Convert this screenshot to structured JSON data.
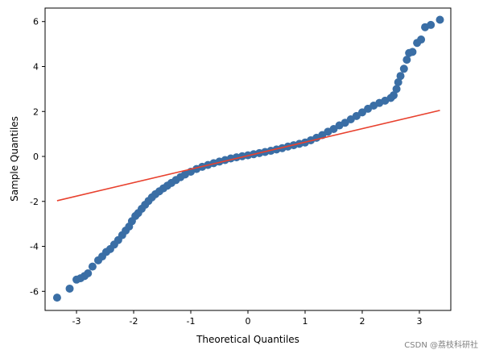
{
  "chart_data": {
    "type": "scatter",
    "xlabel": "Theoretical Quantiles",
    "ylabel": "Sample Quantiles",
    "xlim": [
      -3.55,
      3.55
    ],
    "ylim": [
      -6.85,
      6.6
    ],
    "xticks": [
      "-3",
      "-2",
      "-1",
      "0",
      "1",
      "2",
      "3"
    ],
    "yticks": [
      "-6",
      "-4",
      "-2",
      "0",
      "2",
      "4",
      "6"
    ],
    "grid": false,
    "series": [
      {
        "type": "scatter",
        "color": "#3a6ea5",
        "points": [
          [
            -3.34,
            -6.28
          ],
          [
            -3.12,
            -5.88
          ],
          [
            -3.0,
            -5.48
          ],
          [
            -2.93,
            -5.42
          ],
          [
            -2.86,
            -5.32
          ],
          [
            -2.8,
            -5.2
          ],
          [
            -2.72,
            -4.9
          ],
          [
            -2.62,
            -4.62
          ],
          [
            -2.55,
            -4.45
          ],
          [
            -2.48,
            -4.25
          ],
          [
            -2.41,
            -4.12
          ],
          [
            -2.34,
            -3.92
          ],
          [
            -2.27,
            -3.72
          ],
          [
            -2.2,
            -3.5
          ],
          [
            -2.14,
            -3.3
          ],
          [
            -2.08,
            -3.12
          ],
          [
            -2.03,
            -2.88
          ],
          [
            -1.97,
            -2.65
          ],
          [
            -1.92,
            -2.52
          ],
          [
            -1.86,
            -2.33
          ],
          [
            -1.8,
            -2.15
          ],
          [
            -1.74,
            -1.98
          ],
          [
            -1.68,
            -1.82
          ],
          [
            -1.62,
            -1.68
          ],
          [
            -1.55,
            -1.55
          ],
          [
            -1.48,
            -1.42
          ],
          [
            -1.41,
            -1.3
          ],
          [
            -1.34,
            -1.18
          ],
          [
            -1.26,
            -1.05
          ],
          [
            -1.18,
            -0.92
          ],
          [
            -1.1,
            -0.8
          ],
          [
            -1.0,
            -0.68
          ],
          [
            -0.9,
            -0.56
          ],
          [
            -0.8,
            -0.46
          ],
          [
            -0.7,
            -0.38
          ],
          [
            -0.6,
            -0.3
          ],
          [
            -0.5,
            -0.23
          ],
          [
            -0.4,
            -0.16
          ],
          [
            -0.3,
            -0.09
          ],
          [
            -0.2,
            -0.04
          ],
          [
            -0.1,
            0.01
          ],
          [
            0.0,
            0.05
          ],
          [
            0.1,
            0.1
          ],
          [
            0.2,
            0.15
          ],
          [
            0.3,
            0.2
          ],
          [
            0.4,
            0.25
          ],
          [
            0.5,
            0.31
          ],
          [
            0.6,
            0.37
          ],
          [
            0.7,
            0.44
          ],
          [
            0.8,
            0.5
          ],
          [
            0.9,
            0.56
          ],
          [
            1.0,
            0.62
          ],
          [
            1.1,
            0.72
          ],
          [
            1.2,
            0.83
          ],
          [
            1.3,
            0.95
          ],
          [
            1.4,
            1.1
          ],
          [
            1.5,
            1.22
          ],
          [
            1.6,
            1.38
          ],
          [
            1.7,
            1.5
          ],
          [
            1.8,
            1.65
          ],
          [
            1.9,
            1.8
          ],
          [
            2.0,
            1.96
          ],
          [
            2.1,
            2.12
          ],
          [
            2.2,
            2.26
          ],
          [
            2.3,
            2.38
          ],
          [
            2.4,
            2.48
          ],
          [
            2.5,
            2.6
          ],
          [
            2.55,
            2.72
          ],
          [
            2.6,
            3.0
          ],
          [
            2.63,
            3.3
          ],
          [
            2.67,
            3.58
          ],
          [
            2.73,
            3.9
          ],
          [
            2.78,
            4.3
          ],
          [
            2.82,
            4.6
          ],
          [
            2.88,
            4.65
          ],
          [
            2.96,
            5.05
          ],
          [
            3.03,
            5.2
          ],
          [
            3.1,
            5.75
          ],
          [
            3.2,
            5.85
          ],
          [
            3.36,
            6.08
          ]
        ]
      },
      {
        "type": "line",
        "color": "#e8412e",
        "points": [
          [
            -3.34,
            -1.97
          ],
          [
            3.36,
            2.05
          ]
        ]
      }
    ]
  },
  "watermark": "CSDN @荔枝科研社"
}
